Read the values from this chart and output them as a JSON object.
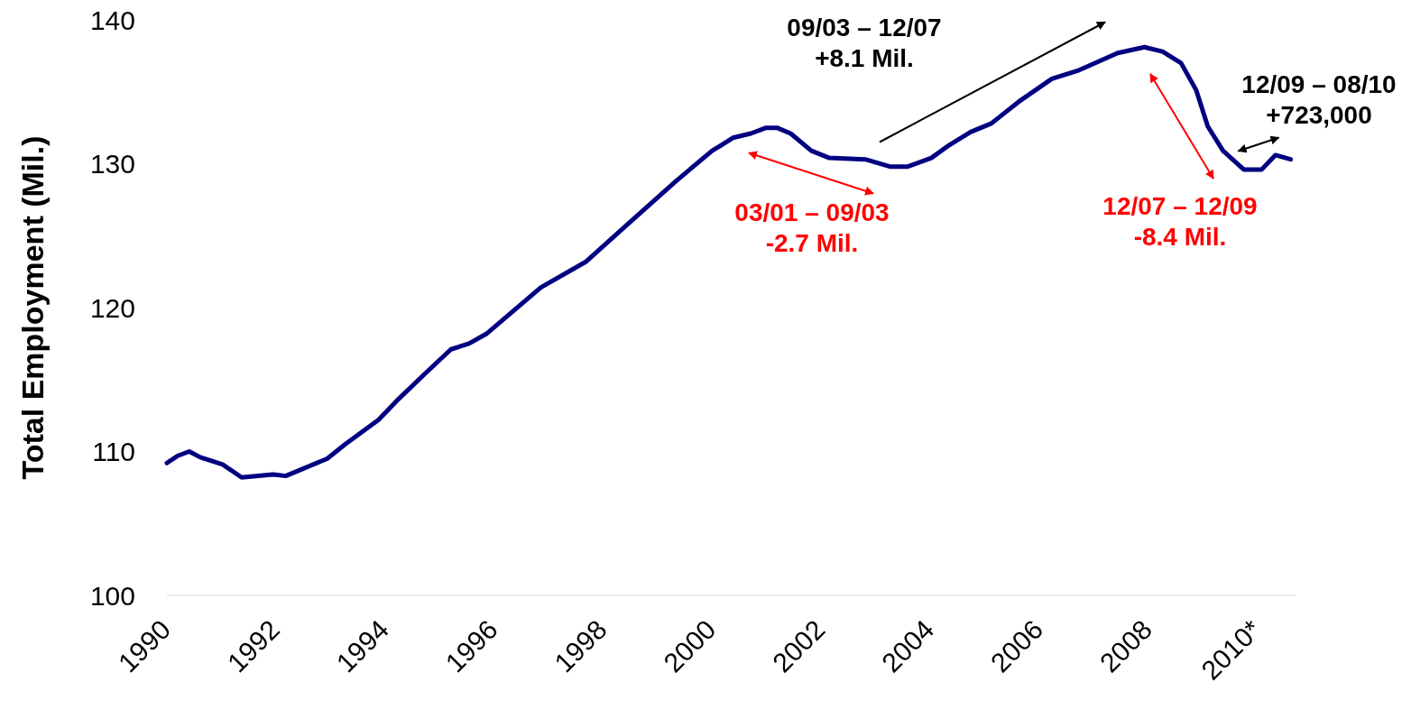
{
  "chart_data": {
    "type": "line",
    "ylabel": "Total Employment (Mil.)",
    "xlim": [
      1990,
      2010.7
    ],
    "xticks": [
      1990,
      1992,
      1994,
      1996,
      1998,
      2000,
      2002,
      2004,
      2006,
      2008,
      {
        "value": 2010,
        "label": "2010*"
      }
    ],
    "ylim": [
      100,
      140
    ],
    "yticks": [
      100,
      110,
      120,
      130,
      140
    ],
    "grid": false,
    "marker": "none",
    "line_style": "solid",
    "series": [
      {
        "color": "#000080",
        "x": [
          1990.0,
          1990.2,
          1990.41,
          1990.61,
          1991.02,
          1991.37,
          1991.95,
          1992.18,
          1992.94,
          1993.27,
          1993.88,
          1994.21,
          1994.76,
          1995.21,
          1995.54,
          1995.87,
          1996.86,
          1997.69,
          1998.51,
          1999.34,
          2000.0,
          2000.17,
          2000.38,
          2000.71,
          2000.99,
          2001.19,
          2001.44,
          2001.82,
          2002.15,
          2002.81,
          2003.26,
          2003.59,
          2004.02,
          2004.35,
          2004.74,
          2005.12,
          2005.62,
          2006.23,
          2006.73,
          2007.44,
          2007.93,
          2008.26,
          2008.6,
          2008.88,
          2009.09,
          2009.37,
          2009.75,
          2010.08,
          2010.33,
          2010.61
        ],
        "values": [
          109.2,
          109.7,
          110.0,
          109.6,
          109.1,
          108.2,
          108.4,
          108.3,
          109.5,
          110.5,
          112.2,
          113.5,
          115.5,
          117.1,
          117.5,
          118.2,
          121.4,
          123.2,
          126.0,
          128.8,
          130.9,
          131.3,
          131.8,
          132.1,
          132.5,
          132.5,
          132.1,
          130.9,
          130.4,
          130.3,
          129.8,
          129.8,
          130.4,
          131.3,
          132.2,
          132.8,
          134.3,
          135.9,
          136.5,
          137.7,
          138.1,
          137.8,
          137.0,
          135.1,
          132.6,
          130.9,
          129.6,
          129.6,
          130.6,
          130.3
        ]
      }
    ],
    "annotations": [
      "09/03 – 12/07\n+8.1 Mil.",
      "03/01 – 09/03\n-2.7 Mil.",
      "12/07 – 12/09\n-8.4 Mil.",
      "12/09 – 08/10\n+723,000"
    ]
  }
}
